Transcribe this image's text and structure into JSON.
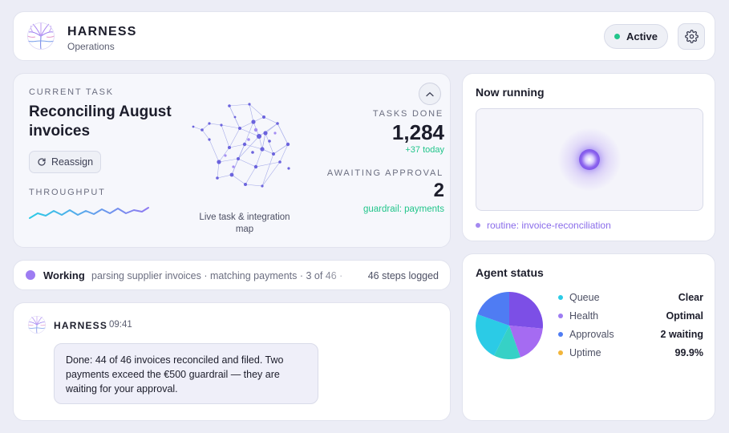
{
  "header": {
    "app_name": "HARNESS",
    "subtitle": "Operations",
    "status_label": "Active",
    "status_color": "#22c58b"
  },
  "current_task": {
    "eyebrow": "CURRENT TASK",
    "title": "Reconciling August invoices",
    "reassign_label": "Reassign",
    "throughput_label": "THROUGHPUT",
    "map_caption": "Live task & integration map",
    "tasks_done_label": "TASKS DONE",
    "tasks_done_value": "1,284",
    "tasks_done_delta": "+37 today",
    "awaiting_label": "AWAITING APPROVAL",
    "awaiting_value": "2",
    "awaiting_note": "guardrail: payments"
  },
  "working": {
    "label": "Working",
    "detail": "parsing supplier invoices · matching payments · 3 of 46 ·",
    "steps": "46 steps logged"
  },
  "chat": {
    "sender": "HARNESS",
    "time": "09:41",
    "message": "Done: 44 of 46 invoices reconciled and filed. Two payments exceed the €500 guardrail — they are waiting for your approval."
  },
  "now_running": {
    "title": "Now running",
    "routine": "routine: invoice-reconciliation"
  },
  "agent_status": {
    "title": "Agent status",
    "items": [
      {
        "label": "Queue",
        "value": "Clear",
        "color": "#2bcbe6"
      },
      {
        "label": "Health",
        "value": "Optimal",
        "color": "#9d7cf2"
      },
      {
        "label": "Approvals",
        "value": "2 waiting",
        "color": "#4f7cf3"
      },
      {
        "label": "Uptime",
        "value": "99.9%",
        "color": "#f2b53a"
      }
    ]
  },
  "icons": {
    "logo": "neural-tree-logo",
    "settings": "gear-icon",
    "reassign": "refresh-icon",
    "collapse": "chevron-up-icon"
  }
}
